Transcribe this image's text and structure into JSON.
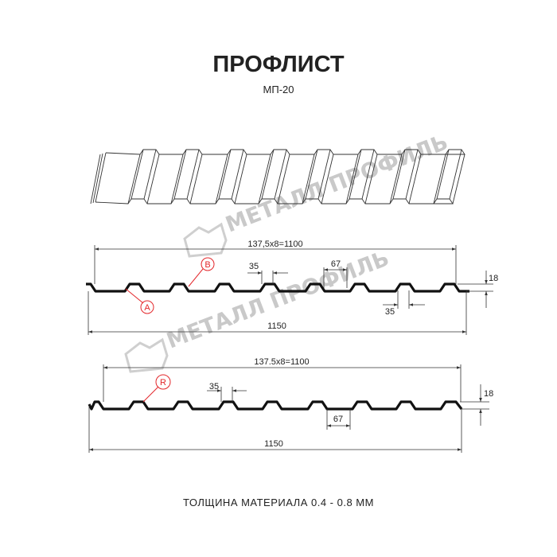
{
  "title": "ПРОФЛИСТ",
  "subtitle": "МП-20",
  "footer": "ТОЛЩИНА МАТЕРИАЛА 0.4 - 0.8 ММ",
  "watermark": "МЕТАЛЛ ПРОФИЛЬ",
  "colors": {
    "accent": "#e3262a",
    "line": "#111111",
    "watermark": "#c9c9c9"
  },
  "profile_1": {
    "pitch_label": "137,5x8=1100",
    "total_label": "1150",
    "top_width": "35",
    "bottom_gap": "67",
    "height": "18",
    "bottom_width": "35",
    "marker_a": "A",
    "marker_b": "B"
  },
  "profile_2": {
    "pitch_label": "137.5x8=1100",
    "total_label": "1150",
    "top_width": "35",
    "bottom_gap": "67",
    "height": "18",
    "marker_r": "R"
  }
}
